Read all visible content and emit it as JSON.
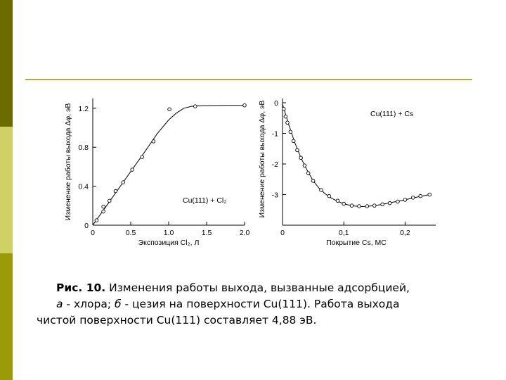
{
  "slide": {
    "sidebar_colors": [
      "#6b6b00",
      "#cfd066",
      "#9b9b0a"
    ],
    "rule_color": "#b8a848"
  },
  "caption": {
    "label": "Рис. 10.",
    "line1": " Изменения работы выхода, вызванные адсорбцией,",
    "line2_a": "а",
    "line2_mid": " - хлора; ",
    "line2_b": "б",
    "line2_rest": " - цезия на поверхности Cu(111). Работа выхода",
    "line3": "чистой поверхности Cu(111) составляет 4,88 эВ."
  },
  "chart_data": [
    {
      "type": "scatter",
      "annotation": "Cu(111) + Cl₂",
      "xlabel": "Экспозиция Cl₂, Л",
      "ylabel": "Изменение работы выхода Δφ, эВ",
      "xlim": [
        0,
        2.0
      ],
      "ylim": [
        0,
        1.3
      ],
      "x_ticks": [
        "0",
        "0.5",
        "1.0",
        "1.5",
        "2.0"
      ],
      "x_tick_values": [
        0,
        0.5,
        1.0,
        1.5,
        2.0
      ],
      "y_ticks": [
        "0",
        "0.4",
        "0.8",
        "1.2"
      ],
      "y_tick_values": [
        0,
        0.4,
        0.8,
        1.2
      ],
      "series": [
        {
          "x": [
            0.05,
            0.14,
            0.14,
            0.22,
            0.3,
            0.4,
            0.52,
            0.65,
            0.8,
            1.01,
            1.35,
            2.0
          ],
          "values": [
            0.05,
            0.14,
            0.19,
            0.25,
            0.35,
            0.44,
            0.57,
            0.7,
            0.86,
            1.19,
            1.22,
            1.23
          ]
        }
      ],
      "fit_curve": {
        "x": [
          0,
          0.1,
          0.3,
          0.5,
          0.7,
          0.85,
          1.0,
          1.1,
          1.2,
          1.3,
          1.4,
          1.6,
          1.8,
          2.0
        ],
        "y": [
          0,
          0.11,
          0.33,
          0.55,
          0.77,
          0.94,
          1.08,
          1.15,
          1.2,
          1.22,
          1.225,
          1.228,
          1.23,
          1.23
        ]
      }
    },
    {
      "type": "scatter",
      "annotation": "Cu(111) + Cs",
      "xlabel": "Покрытие Cs, МС",
      "ylabel": "Изменение работы выхода Δφ, эВ",
      "xlim": [
        0,
        0.25
      ],
      "ylim": [
        -4,
        0
      ],
      "x_ticks": [
        "0",
        "0,1",
        "0,2"
      ],
      "x_tick_values": [
        0,
        0.1,
        0.2
      ],
      "y_ticks": [
        "0",
        "-1",
        "-2",
        "-3"
      ],
      "y_tick_values": [
        0,
        -1,
        -2,
        -3
      ],
      "series": [
        {
          "x": [
            0.002,
            0.005,
            0.008,
            0.013,
            0.018,
            0.024,
            0.03,
            0.036,
            0.042,
            0.05,
            0.063,
            0.076,
            0.09,
            0.1,
            0.113,
            0.125,
            0.138,
            0.15,
            0.163,
            0.175,
            0.188,
            0.2,
            0.213,
            0.225,
            0.24
          ],
          "values": [
            -0.2,
            -0.45,
            -0.65,
            -0.95,
            -1.25,
            -1.55,
            -1.8,
            -2.05,
            -2.3,
            -2.55,
            -2.85,
            -3.05,
            -3.2,
            -3.3,
            -3.36,
            -3.38,
            -3.38,
            -3.36,
            -3.32,
            -3.28,
            -3.23,
            -3.17,
            -3.1,
            -3.05,
            -3.0
          ]
        }
      ],
      "fit_curve": {
        "x": [
          0,
          0.01,
          0.02,
          0.03,
          0.04,
          0.05,
          0.06,
          0.07,
          0.08,
          0.09,
          0.1,
          0.11,
          0.12,
          0.13,
          0.14,
          0.15,
          0.16,
          0.18,
          0.2,
          0.22,
          0.24
        ],
        "y": [
          -0.05,
          -0.7,
          -1.3,
          -1.8,
          -2.2,
          -2.55,
          -2.8,
          -2.98,
          -3.12,
          -3.22,
          -3.3,
          -3.35,
          -3.38,
          -3.39,
          -3.38,
          -3.36,
          -3.33,
          -3.25,
          -3.17,
          -3.08,
          -3.0
        ]
      }
    }
  ]
}
